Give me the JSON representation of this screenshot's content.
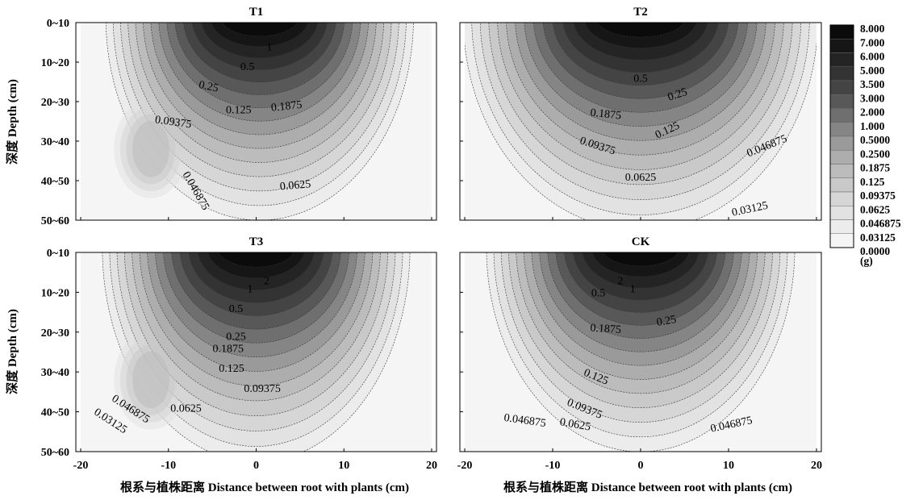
{
  "chart_data": {
    "type": "contour",
    "panels": [
      {
        "title": "T1",
        "labels": [
          {
            "text": "1",
            "x": 1.5,
            "y": 1.7,
            "rot": 0
          },
          {
            "text": "0.5",
            "x": -1.0,
            "y": 2.2,
            "rot": 0
          },
          {
            "text": "0.25",
            "x": -5.5,
            "y": 2.7,
            "rot": 12
          },
          {
            "text": "0.125",
            "x": -2.0,
            "y": 3.3,
            "rot": 0
          },
          {
            "text": "0.1875",
            "x": 3.5,
            "y": 3.2,
            "rot": -6
          },
          {
            "text": "0.09375",
            "x": -9.5,
            "y": 3.6,
            "rot": 8
          },
          {
            "text": "0.0625",
            "x": 4.5,
            "y": 5.2,
            "rot": -5
          },
          {
            "text": "0.046875",
            "x": -7.2,
            "y": 5.3,
            "rot": 60
          }
        ]
      },
      {
        "title": "T2",
        "labels": [
          {
            "text": "0.5",
            "x": 0.0,
            "y": 2.5,
            "rot": 0
          },
          {
            "text": "0.25",
            "x": 4.3,
            "y": 2.9,
            "rot": -18
          },
          {
            "text": "0.1875",
            "x": -4.0,
            "y": 3.4,
            "rot": 6
          },
          {
            "text": "0.125",
            "x": 3.2,
            "y": 3.8,
            "rot": -25
          },
          {
            "text": "0.09375",
            "x": -5.0,
            "y": 4.2,
            "rot": 18
          },
          {
            "text": "0.046875",
            "x": 14.5,
            "y": 4.2,
            "rot": -22
          },
          {
            "text": "0.0625",
            "x": 0.0,
            "y": 5.0,
            "rot": 0
          },
          {
            "text": "0.03125",
            "x": 12.5,
            "y": 5.8,
            "rot": -12
          }
        ]
      },
      {
        "title": "T3",
        "labels": [
          {
            "text": "2",
            "x": 1.2,
            "y": 1.8,
            "rot": 0
          },
          {
            "text": "1",
            "x": -0.7,
            "y": 2.0,
            "rot": 0
          },
          {
            "text": "0.5",
            "x": -2.3,
            "y": 2.5,
            "rot": 0
          },
          {
            "text": "0.25",
            "x": -2.3,
            "y": 3.2,
            "rot": 0
          },
          {
            "text": "0.1875",
            "x": -3.2,
            "y": 3.5,
            "rot": 0
          },
          {
            "text": "0.125",
            "x": -2.8,
            "y": 4.0,
            "rot": 0
          },
          {
            "text": "0.09375",
            "x": 0.7,
            "y": 4.5,
            "rot": 0
          },
          {
            "text": "0.0625",
            "x": -8.0,
            "y": 5.0,
            "rot": 0
          },
          {
            "text": "0.046875",
            "x": -14.5,
            "y": 5.0,
            "rot": 33
          },
          {
            "text": "0.03125",
            "x": -16.8,
            "y": 5.3,
            "rot": 33
          }
        ]
      },
      {
        "title": "CK",
        "labels": [
          {
            "text": "2",
            "x": -2.3,
            "y": 1.8,
            "rot": 0
          },
          {
            "text": "1",
            "x": -0.9,
            "y": 2.0,
            "rot": 0
          },
          {
            "text": "0.5",
            "x": -4.8,
            "y": 2.1,
            "rot": 0
          },
          {
            "text": "0.25",
            "x": 3.0,
            "y": 2.8,
            "rot": -10
          },
          {
            "text": "0.1875",
            "x": -4.0,
            "y": 3.0,
            "rot": 4
          },
          {
            "text": "0.125",
            "x": -5.2,
            "y": 4.2,
            "rot": 22
          },
          {
            "text": "0.09375",
            "x": -6.5,
            "y": 5.0,
            "rot": 22
          },
          {
            "text": "0.0625",
            "x": -7.5,
            "y": 5.4,
            "rot": 10
          },
          {
            "text": "0.046875",
            "x": -13.2,
            "y": 5.3,
            "rot": 8
          },
          {
            "text": "0.046875",
            "x": 10.4,
            "y": 5.4,
            "rot": -12
          }
        ]
      }
    ],
    "xlabel": "根系与植株距离 Distance between root with plants (cm)",
    "ylabel": "深度 Depth (cm)",
    "xlim": [
      -20,
      20
    ],
    "xticks": [
      -20,
      -10,
      0,
      10,
      20
    ],
    "yticks": [
      "0~10",
      "10~20",
      "20~30",
      "30~40",
      "40~50",
      "50~60"
    ],
    "ylim": [
      1,
      6
    ],
    "levels": [
      0.0,
      0.03125,
      0.046875,
      0.0625,
      0.09375,
      0.125,
      0.1875,
      0.25,
      0.5,
      1.0,
      2.0,
      3.0,
      3.5,
      5.0,
      6.0,
      7.0,
      8.0
    ],
    "legend_labels": [
      "8.000",
      "7.000",
      "6.000",
      "5.000",
      "3.500",
      "3.000",
      "2.000",
      "1.000",
      "0.5000",
      "0.2500",
      "0.1875",
      "0.125",
      "0.09375",
      "0.0625",
      "0.046875",
      "0.03125",
      "0.0000"
    ],
    "legend_unit": "(g)",
    "legend_placement": "right",
    "colors": {
      "palette": [
        "#f5f5f5",
        "#ececec",
        "#e2e2e2",
        "#d6d6d6",
        "#c9c9c9",
        "#bcbcbc",
        "#adadad",
        "#9a9a9a",
        "#858585",
        "#6f6f6f",
        "#585858",
        "#444444",
        "#333333",
        "#242424",
        "#161616",
        "#0b0b0b"
      ],
      "contour_line": "#333333"
    }
  }
}
